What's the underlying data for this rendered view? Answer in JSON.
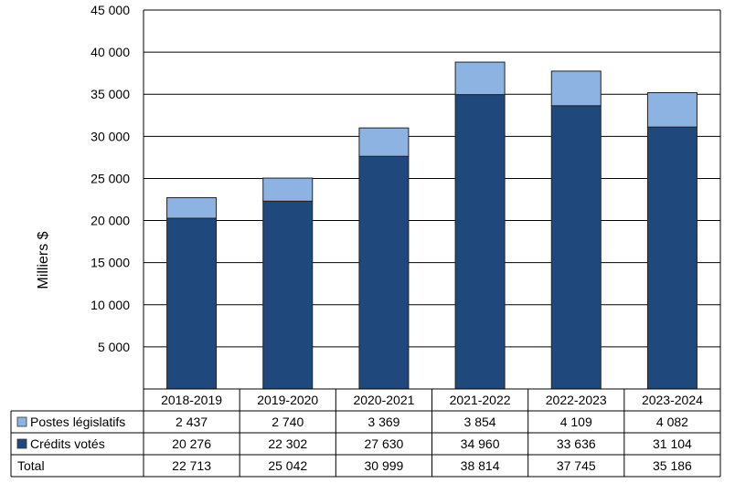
{
  "chart_data": {
    "type": "bar",
    "stacked": true,
    "ylabel": "Milliers $",
    "ylim": [
      0,
      45000
    ],
    "yticks": [
      5000,
      10000,
      15000,
      20000,
      25000,
      30000,
      35000,
      40000,
      45000
    ],
    "ytick_labels": [
      "5 000",
      "10 000",
      "15 000",
      "20 000",
      "25 000",
      "30 000",
      "35 000",
      "40 000",
      "45 000"
    ],
    "grid": true,
    "legend": "table-left",
    "categories": [
      "2018-2019",
      "2019-2020",
      "2020-2021",
      "2021-2022",
      "2022-2023",
      "2023-2024"
    ],
    "series": [
      {
        "name": "Crédits votés",
        "color": "#1f497d",
        "values": [
          20276,
          22302,
          27630,
          34960,
          33636,
          31104
        ],
        "labels": [
          "20 276",
          "22 302",
          "27 630",
          "34 960",
          "33 636",
          "31 104"
        ]
      },
      {
        "name": "Postes législatifs",
        "color": "#8db3e2",
        "values": [
          2437,
          2740,
          3369,
          3854,
          4109,
          4082
        ],
        "labels": [
          "2 437",
          "2 740",
          "3 369",
          "3 854",
          "4 109",
          "4 082"
        ]
      }
    ],
    "table": {
      "rows": [
        {
          "label": "Postes législatifs",
          "color": "#8db3e2",
          "series": 1
        },
        {
          "label": "Crédits votés",
          "color": "#1f497d",
          "series": 0
        },
        {
          "label": "Total",
          "color": null,
          "values": [
            "22 713",
            "25 042",
            "30 999",
            "38 814",
            "37 745",
            "35 186"
          ]
        }
      ]
    }
  }
}
